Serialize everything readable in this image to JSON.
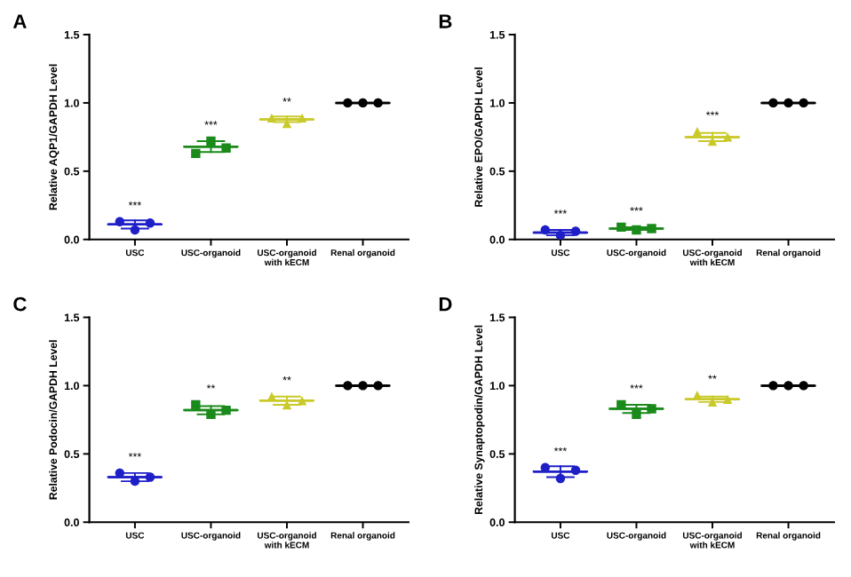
{
  "chart_data": [
    {
      "type": "scatter",
      "title": "A",
      "ylabel": "Relative AQP1/GAPDH Level",
      "categories": [
        "USC",
        "USC-organoid",
        "USC-organoid\nwith kECM",
        "Renal organoid"
      ],
      "ylim": [
        0,
        1.5
      ],
      "yticks": [
        {
          "value": 0,
          "label": "0.0"
        },
        {
          "value": 0.5,
          "label": "0.5"
        },
        {
          "value": 1.0,
          "label": "1.0"
        },
        {
          "value": 1.5,
          "label": "1.5"
        }
      ],
      "grid": false,
      "legend": false,
      "series": [
        {
          "x": [
            "USC",
            "USC",
            "USC"
          ],
          "values": [
            0.13,
            0.07,
            0.12
          ],
          "color": "#1f1fc8",
          "marker": "circle"
        },
        {
          "x": [
            "USC-organoid",
            "USC-organoid",
            "USC-organoid"
          ],
          "values": [
            0.63,
            0.72,
            0.67
          ],
          "color": "#1a8a1a",
          "marker": "square"
        },
        {
          "x": [
            "USC-organoid\nwith kECM",
            "USC-organoid\nwith kECM",
            "USC-organoid\nwith kECM"
          ],
          "values": [
            0.89,
            0.85,
            0.89
          ],
          "color": "#c9c92a",
          "marker": "triangle"
        },
        {
          "x": [
            "Renal organoid",
            "Renal organoid",
            "Renal organoid"
          ],
          "values": [
            1.0,
            1.0,
            1.0
          ],
          "color": "#000000",
          "marker": "circle"
        },
        {
          "type": "box",
          "colors": [
            "#1f1fc8",
            "#1a8a1a",
            "#c9c92a",
            "#000000"
          ],
          "boxes": [
            {
              "low": 0.08,
              "q1": 0.11,
              "median": 0.11,
              "q3": 0.11,
              "high": 0.14
            },
            {
              "low": 0.64,
              "q1": 0.68,
              "median": 0.68,
              "q3": 0.68,
              "high": 0.72
            },
            {
              "low": 0.86,
              "q1": 0.88,
              "median": 0.88,
              "q3": 0.88,
              "high": 0.9
            },
            {
              "low": 1.0,
              "q1": 1.0,
              "median": 1.0,
              "q3": 1.0,
              "high": 1.0
            }
          ]
        }
      ],
      "annotations": [
        "***",
        "***",
        "**"
      ]
    },
    {
      "type": "scatter",
      "title": "B",
      "ylabel": "Relative EPO/GAPDH Level",
      "categories": [
        "USC",
        "USC-organoid",
        "USC-organoid\nwith kECM",
        "Renal organoid"
      ],
      "ylim": [
        0,
        1.5
      ],
      "yticks": [
        {
          "value": 0,
          "label": "0.0"
        },
        {
          "value": 0.5,
          "label": "0.5"
        },
        {
          "value": 1.0,
          "label": "1.0"
        },
        {
          "value": 1.5,
          "label": "1.5"
        }
      ],
      "grid": false,
      "legend": false,
      "series": [
        {
          "x": [
            "USC",
            "USC",
            "USC"
          ],
          "values": [
            0.07,
            0.03,
            0.06
          ],
          "color": "#1f1fc8",
          "marker": "circle"
        },
        {
          "x": [
            "USC-organoid",
            "USC-organoid",
            "USC-organoid"
          ],
          "values": [
            0.09,
            0.07,
            0.08
          ],
          "color": "#1a8a1a",
          "marker": "square"
        },
        {
          "x": [
            "USC-organoid\nwith kECM",
            "USC-organoid\nwith kECM",
            "USC-organoid\nwith kECM"
          ],
          "values": [
            0.79,
            0.72,
            0.75
          ],
          "color": "#c9c92a",
          "marker": "triangle"
        },
        {
          "x": [
            "Renal organoid",
            "Renal organoid",
            "Renal organoid"
          ],
          "values": [
            1.0,
            1.0,
            1.0
          ],
          "color": "#000000",
          "marker": "circle"
        },
        {
          "type": "box",
          "colors": [
            "#1f1fc8",
            "#1a8a1a",
            "#c9c92a",
            "#000000"
          ],
          "boxes": [
            {
              "low": 0.03,
              "q1": 0.05,
              "median": 0.05,
              "q3": 0.05,
              "high": 0.07
            },
            {
              "low": 0.07,
              "q1": 0.08,
              "median": 0.08,
              "q3": 0.08,
              "high": 0.09
            },
            {
              "low": 0.72,
              "q1": 0.75,
              "median": 0.75,
              "q3": 0.75,
              "high": 0.78
            },
            {
              "low": 1.0,
              "q1": 1.0,
              "median": 1.0,
              "q3": 1.0,
              "high": 1.0
            }
          ]
        }
      ],
      "annotations": [
        "***",
        "***",
        "***"
      ]
    },
    {
      "type": "scatter",
      "title": "C",
      "ylabel": "Relative Podocin/GAPDH Level",
      "categories": [
        "USC",
        "USC-organoid",
        "USC-organoid\nwith kECM",
        "Renal organoid"
      ],
      "ylim": [
        0,
        1.5
      ],
      "yticks": [
        {
          "value": 0,
          "label": "0.0"
        },
        {
          "value": 0.5,
          "label": "0.5"
        },
        {
          "value": 1.0,
          "label": "1.0"
        },
        {
          "value": 1.5,
          "label": "1.5"
        }
      ],
      "grid": false,
      "legend": false,
      "series": [
        {
          "x": [
            "USC",
            "USC",
            "USC"
          ],
          "values": [
            0.36,
            0.3,
            0.33
          ],
          "color": "#1f1fc8",
          "marker": "circle"
        },
        {
          "x": [
            "USC-organoid",
            "USC-organoid",
            "USC-organoid"
          ],
          "values": [
            0.86,
            0.79,
            0.82
          ],
          "color": "#1a8a1a",
          "marker": "square"
        },
        {
          "x": [
            "USC-organoid\nwith kECM",
            "USC-organoid\nwith kECM",
            "USC-organoid\nwith kECM"
          ],
          "values": [
            0.92,
            0.86,
            0.89
          ],
          "color": "#c9c92a",
          "marker": "triangle"
        },
        {
          "x": [
            "Renal organoid",
            "Renal organoid",
            "Renal organoid"
          ],
          "values": [
            1.0,
            1.0,
            1.0
          ],
          "color": "#000000",
          "marker": "circle"
        },
        {
          "type": "box",
          "colors": [
            "#1f1fc8",
            "#1a8a1a",
            "#c9c92a",
            "#000000"
          ],
          "boxes": [
            {
              "low": 0.3,
              "q1": 0.33,
              "median": 0.33,
              "q3": 0.33,
              "high": 0.36
            },
            {
              "low": 0.79,
              "q1": 0.82,
              "median": 0.82,
              "q3": 0.82,
              "high": 0.85
            },
            {
              "low": 0.86,
              "q1": 0.89,
              "median": 0.89,
              "q3": 0.89,
              "high": 0.92
            },
            {
              "low": 1.0,
              "q1": 1.0,
              "median": 1.0,
              "q3": 1.0,
              "high": 1.0
            }
          ]
        }
      ],
      "annotations": [
        "***",
        "**",
        "**"
      ]
    },
    {
      "type": "scatter",
      "title": "D",
      "ylabel": "Relative Synaptopodin/GAPDH Level",
      "categories": [
        "USC",
        "USC-organoid",
        "USC-organoid\nwith kECM",
        "Renal organoid"
      ],
      "ylim": [
        0,
        1.5
      ],
      "yticks": [
        {
          "value": 0,
          "label": "0.0"
        },
        {
          "value": 0.5,
          "label": "0.5"
        },
        {
          "value": 1.0,
          "label": "1.0"
        },
        {
          "value": 1.5,
          "label": "1.5"
        }
      ],
      "grid": false,
      "legend": false,
      "series": [
        {
          "x": [
            "USC",
            "USC",
            "USC"
          ],
          "values": [
            0.4,
            0.32,
            0.38
          ],
          "color": "#1f1fc8",
          "marker": "circle"
        },
        {
          "x": [
            "USC-organoid",
            "USC-organoid",
            "USC-organoid"
          ],
          "values": [
            0.86,
            0.79,
            0.83
          ],
          "color": "#1a8a1a",
          "marker": "square"
        },
        {
          "x": [
            "USC-organoid\nwith kECM",
            "USC-organoid\nwith kECM",
            "USC-organoid\nwith kECM"
          ],
          "values": [
            0.93,
            0.88,
            0.9
          ],
          "color": "#c9c92a",
          "marker": "triangle"
        },
        {
          "x": [
            "Renal organoid",
            "Renal organoid",
            "Renal organoid"
          ],
          "values": [
            1.0,
            1.0,
            1.0
          ],
          "color": "#000000",
          "marker": "circle"
        },
        {
          "type": "box",
          "colors": [
            "#1f1fc8",
            "#1a8a1a",
            "#c9c92a",
            "#000000"
          ],
          "boxes": [
            {
              "low": 0.33,
              "q1": 0.37,
              "median": 0.37,
              "q3": 0.37,
              "high": 0.41
            },
            {
              "low": 0.8,
              "q1": 0.83,
              "median": 0.83,
              "q3": 0.83,
              "high": 0.86
            },
            {
              "low": 0.88,
              "q1": 0.9,
              "median": 0.9,
              "q3": 0.9,
              "high": 0.92
            },
            {
              "low": 1.0,
              "q1": 1.0,
              "median": 1.0,
              "q3": 1.0,
              "high": 1.0
            }
          ]
        }
      ],
      "annotations": [
        "***",
        "***",
        "**"
      ]
    }
  ]
}
